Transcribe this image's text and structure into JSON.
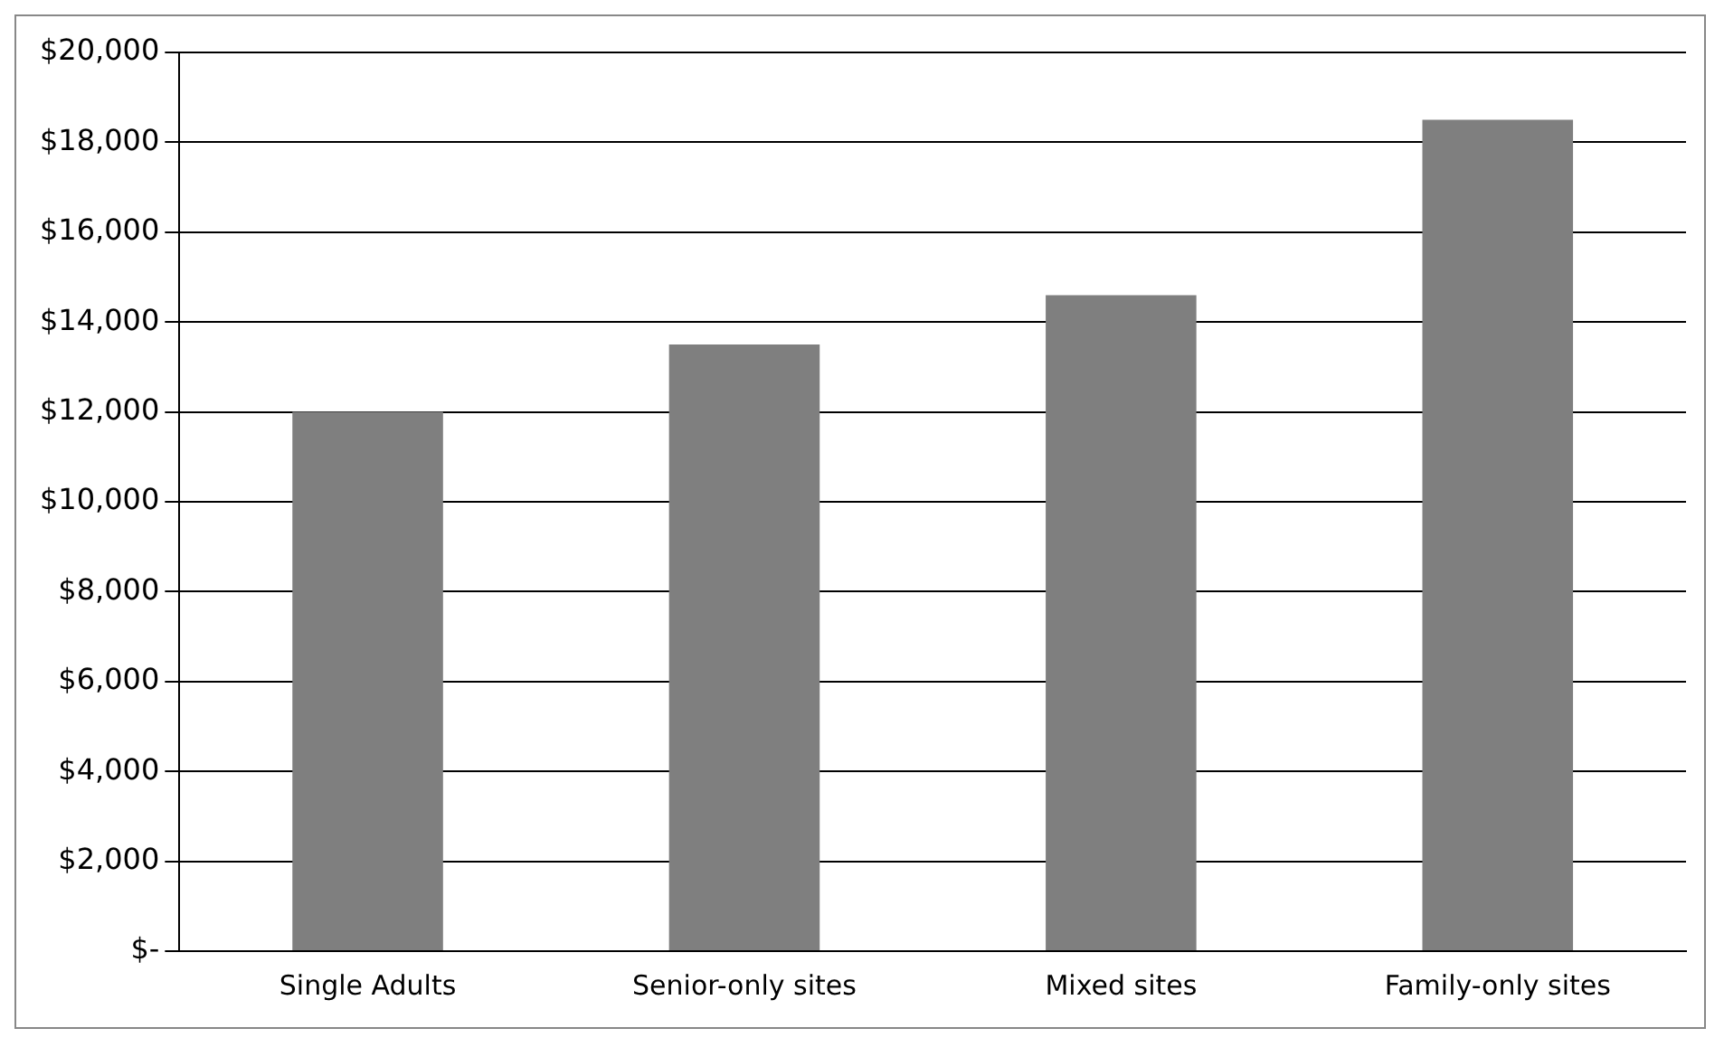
{
  "chart_data": {
    "type": "bar",
    "categories": [
      "Single Adults",
      "Senior-only sites",
      "Mixed sites",
      "Family-only sites"
    ],
    "values": [
      12000,
      13500,
      14600,
      18500
    ],
    "color": "#7f7f7f",
    "ylim": [
      0,
      20000
    ],
    "yticks": [
      {
        "value": 0,
        "label": "$-"
      },
      {
        "value": 2000,
        "label": "$2,000"
      },
      {
        "value": 4000,
        "label": "$4,000"
      },
      {
        "value": 6000,
        "label": "$6,000"
      },
      {
        "value": 8000,
        "label": "$8,000"
      },
      {
        "value": 10000,
        "label": "$10,000"
      },
      {
        "value": 12000,
        "label": "$12,000"
      },
      {
        "value": 14000,
        "label": "$14,000"
      },
      {
        "value": 16000,
        "label": "$16,000"
      },
      {
        "value": 18000,
        "label": "$18,000"
      },
      {
        "value": 20000,
        "label": "$20,000"
      }
    ],
    "grid": "y"
  }
}
